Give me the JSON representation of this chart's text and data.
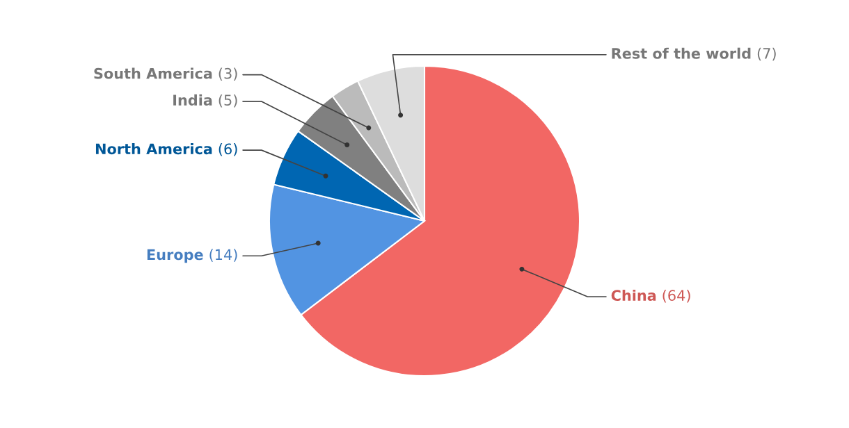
{
  "chart_data": {
    "type": "pie",
    "categories": [
      "China",
      "Europe",
      "North America",
      "India",
      "South America",
      "Rest of the world"
    ],
    "values": [
      64,
      14,
      6,
      5,
      3,
      7
    ],
    "colors": [
      "#f26764",
      "#5294e2",
      "#0066b2",
      "#808080",
      "#bbbbbb",
      "#dddddd"
    ],
    "value_labels": [
      "(64)",
      "(14)",
      "(6)",
      "(5)",
      "(3)",
      "(7)"
    ],
    "legend": false
  }
}
